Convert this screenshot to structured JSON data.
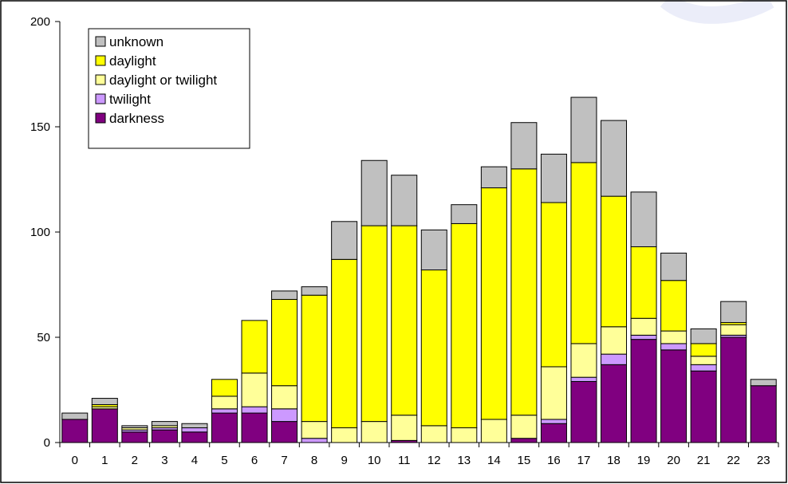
{
  "chart_data": {
    "type": "bar",
    "stacked": true,
    "categories": [
      "0",
      "1",
      "2",
      "3",
      "4",
      "5",
      "6",
      "7",
      "8",
      "9",
      "10",
      "11",
      "12",
      "13",
      "14",
      "15",
      "16",
      "17",
      "18",
      "19",
      "20",
      "21",
      "22",
      "23"
    ],
    "series": [
      {
        "name": "darkness",
        "color": "#800080",
        "values": [
          11,
          16,
          5,
          6,
          5,
          14,
          14,
          10,
          0,
          0,
          0,
          1,
          0,
          0,
          0,
          2,
          9,
          29,
          37,
          49,
          44,
          34,
          50,
          27
        ]
      },
      {
        "name": "twilight",
        "color": "#cc99ff",
        "values": [
          0,
          0,
          1,
          1,
          2,
          2,
          3,
          6,
          2,
          0,
          0,
          0,
          0,
          0,
          0,
          0,
          2,
          2,
          5,
          2,
          3,
          3,
          1,
          0
        ]
      },
      {
        "name": "daylight or twilight",
        "color": "#ffff99",
        "values": [
          0,
          1,
          1,
          1,
          0,
          6,
          16,
          11,
          8,
          7,
          10,
          12,
          8,
          7,
          11,
          11,
          25,
          16,
          13,
          8,
          6,
          4,
          5,
          0
        ]
      },
      {
        "name": "daylight",
        "color": "#ffff00",
        "values": [
          0,
          1,
          0,
          0,
          0,
          8,
          25,
          41,
          60,
          80,
          93,
          90,
          74,
          97,
          110,
          117,
          78,
          86,
          62,
          34,
          24,
          6,
          1,
          0
        ]
      },
      {
        "name": "unknown",
        "color": "#c0c0c0",
        "values": [
          3,
          3,
          1,
          2,
          2,
          0,
          0,
          4,
          4,
          18,
          31,
          24,
          19,
          9,
          10,
          22,
          23,
          31,
          36,
          26,
          13,
          7,
          10,
          3
        ]
      }
    ],
    "y_ticks": [
      0,
      50,
      100,
      150,
      200
    ],
    "ylim": [
      0,
      200
    ],
    "grid": false,
    "legend_position": "top-left",
    "legend_order": [
      "unknown",
      "daylight",
      "daylight or twilight",
      "twilight",
      "darkness"
    ]
  }
}
